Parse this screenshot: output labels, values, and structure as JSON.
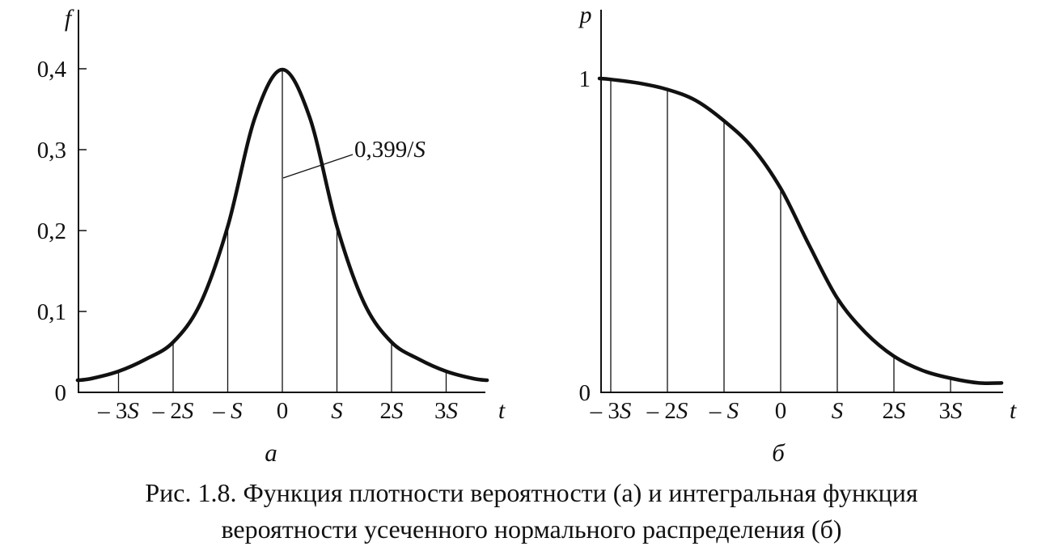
{
  "caption": {
    "line1": "Рис. 1.8. Функция плотности вероятности (а) и интегральная функция",
    "line2": "вероятности усеченного нормального распределения (б)"
  },
  "chart_data": [
    {
      "type": "line",
      "panel_label": "а",
      "xlabel": "t",
      "ylabel": "f",
      "x_ticks": [
        "– 3S",
        "– 2S",
        "– S",
        "0",
        "S",
        "2S",
        "3S"
      ],
      "x_tick_values": [
        -3,
        -2,
        -1,
        0,
        1,
        2,
        3
      ],
      "y_ticks": [
        "0",
        "0,1",
        "0,2",
        "0,3",
        "0,4"
      ],
      "y_tick_values": [
        0,
        0.1,
        0.2,
        0.3,
        0.4
      ],
      "xlim": [
        -3.8,
        4.0
      ],
      "ylim": [
        0,
        0.42
      ],
      "annotation": "0,399/S",
      "series": [
        {
          "x": [
            -3.75,
            -3.5,
            -3.0,
            -2.5,
            -2.0,
            -1.5,
            -1.0,
            -0.5,
            0.0,
            0.5,
            1.0,
            1.5,
            2.0,
            2.5,
            3.0,
            3.5,
            3.75
          ],
          "values": [
            0.015,
            0.017,
            0.026,
            0.041,
            0.062,
            0.11,
            0.205,
            0.34,
            0.399,
            0.34,
            0.205,
            0.11,
            0.062,
            0.041,
            0.026,
            0.017,
            0.015
          ]
        }
      ],
      "verticals": [
        {
          "x": -3,
          "y": 0.026
        },
        {
          "x": -2,
          "y": 0.062
        },
        {
          "x": -1,
          "y": 0.205
        },
        {
          "x": 0,
          "y": 0.399
        },
        {
          "x": 1,
          "y": 0.205
        },
        {
          "x": 2,
          "y": 0.062
        },
        {
          "x": 3,
          "y": 0.026
        }
      ]
    },
    {
      "type": "line",
      "panel_label": "б",
      "xlabel": "t",
      "ylabel": "p",
      "x_ticks": [
        "– 3S",
        "– 2S",
        "– S",
        "0",
        "S",
        "2S",
        "3S"
      ],
      "x_tick_values": [
        -3,
        -2,
        -1,
        0,
        1,
        2,
        3
      ],
      "y_ticks": [
        "0",
        "1"
      ],
      "y_tick_values": [
        0,
        1
      ],
      "xlim": [
        -3.3,
        4.0
      ],
      "ylim": [
        0,
        1.05
      ],
      "series": [
        {
          "x": [
            -3.2,
            -3.0,
            -2.5,
            -2.0,
            -1.5,
            -1.0,
            -0.5,
            0.0,
            0.5,
            1.0,
            1.5,
            2.0,
            2.5,
            3.0,
            3.5,
            3.9
          ],
          "values": [
            1.0,
            0.997,
            0.985,
            0.965,
            0.93,
            0.865,
            0.78,
            0.65,
            0.47,
            0.3,
            0.19,
            0.115,
            0.07,
            0.045,
            0.03,
            0.03
          ]
        }
      ],
      "verticals": [
        {
          "x": -3,
          "y": 0.997
        },
        {
          "x": -2,
          "y": 0.965
        },
        {
          "x": -1,
          "y": 0.865
        },
        {
          "x": 0,
          "y": 0.65
        },
        {
          "x": 1,
          "y": 0.3
        },
        {
          "x": 2,
          "y": 0.115
        },
        {
          "x": 3,
          "y": 0.045
        }
      ]
    }
  ]
}
